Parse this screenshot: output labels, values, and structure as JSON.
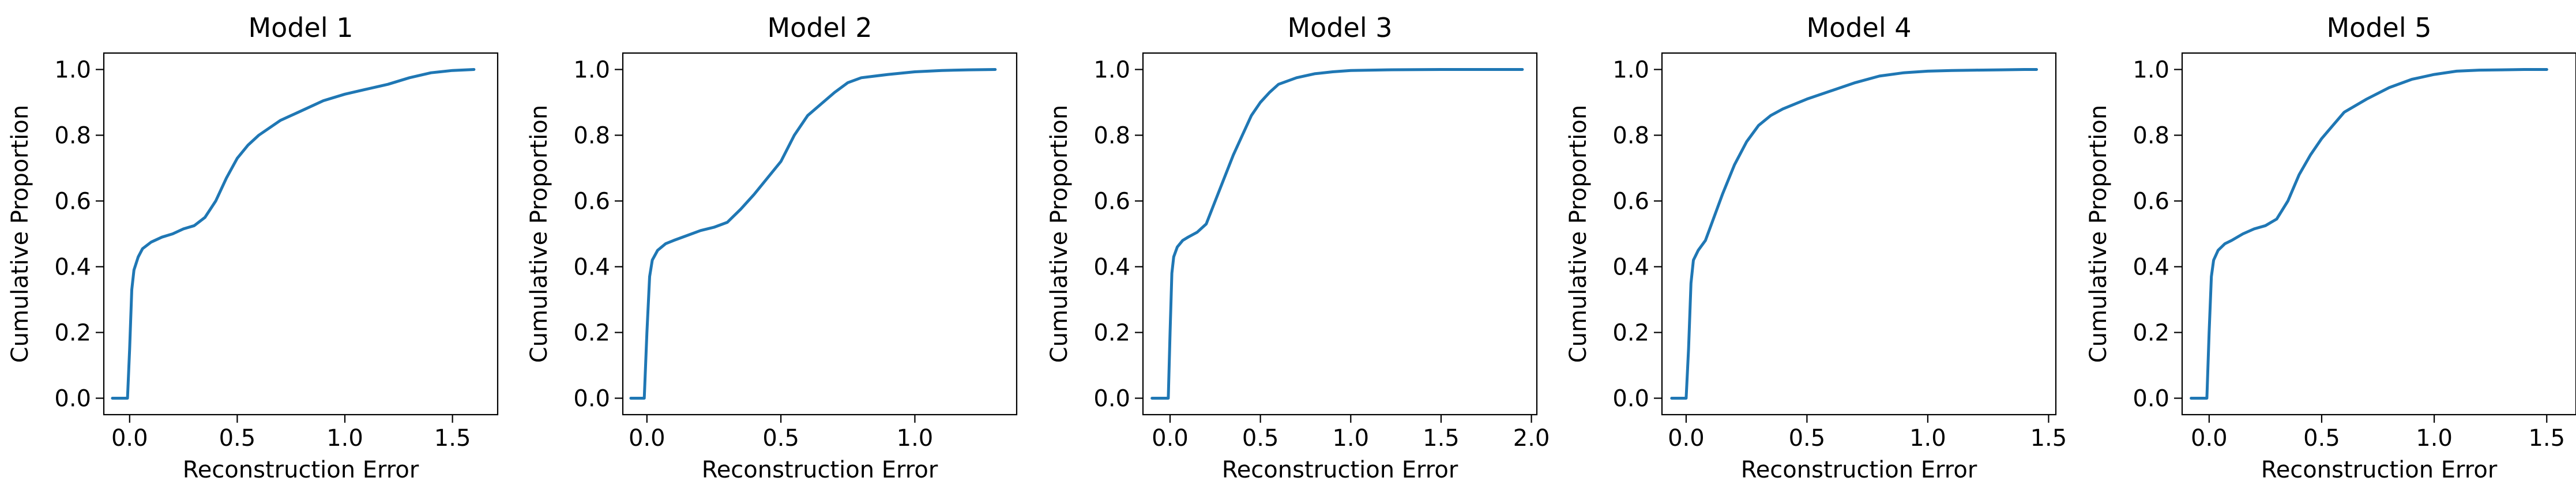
{
  "chart_data": [
    {
      "type": "line",
      "title": "Model 1",
      "xlabel": "Reconstruction Error",
      "ylabel": "Cumulative Proportion",
      "xlim": [
        -0.12,
        1.71
      ],
      "ylim": [
        -0.05,
        1.05
      ],
      "xticks": [
        0.0,
        0.5,
        1.0,
        1.5
      ],
      "xtick_labels": [
        "0.0",
        "0.5",
        "1.0",
        "1.5"
      ],
      "yticks": [
        0.0,
        0.2,
        0.4,
        0.6,
        0.8,
        1.0
      ],
      "ytick_labels": [
        "0.0",
        "0.2",
        "0.4",
        "0.6",
        "0.8",
        "1.0"
      ],
      "grid": false,
      "color": "#1f77b4",
      "series": [
        {
          "x": [
            -0.08,
            -0.01,
            0.0,
            0.01,
            0.02,
            0.04,
            0.06,
            0.1,
            0.15,
            0.2,
            0.25,
            0.3,
            0.35,
            0.4,
            0.45,
            0.5,
            0.55,
            0.6,
            0.7,
            0.8,
            0.9,
            1.0,
            1.1,
            1.2,
            1.3,
            1.4,
            1.5,
            1.6
          ],
          "y": [
            0.0,
            0.0,
            0.15,
            0.33,
            0.39,
            0.43,
            0.455,
            0.475,
            0.49,
            0.5,
            0.515,
            0.525,
            0.55,
            0.6,
            0.67,
            0.73,
            0.77,
            0.8,
            0.845,
            0.875,
            0.905,
            0.925,
            0.94,
            0.955,
            0.975,
            0.99,
            0.997,
            1.0
          ]
        }
      ]
    },
    {
      "type": "line",
      "title": "Model 2",
      "xlabel": "Reconstruction Error",
      "ylabel": "Cumulative Proportion",
      "xlim": [
        -0.09,
        1.38
      ],
      "ylim": [
        -0.05,
        1.05
      ],
      "xticks": [
        0.0,
        0.5,
        1.0
      ],
      "xtick_labels": [
        "0.0",
        "0.5",
        "1.0"
      ],
      "yticks": [
        0.0,
        0.2,
        0.4,
        0.6,
        0.8,
        1.0
      ],
      "ytick_labels": [
        "0.0",
        "0.2",
        "0.4",
        "0.6",
        "0.8",
        "1.0"
      ],
      "grid": false,
      "color": "#1f77b4",
      "series": [
        {
          "x": [
            -0.06,
            -0.01,
            0.0,
            0.01,
            0.02,
            0.04,
            0.07,
            0.1,
            0.15,
            0.2,
            0.25,
            0.3,
            0.35,
            0.4,
            0.45,
            0.5,
            0.55,
            0.6,
            0.65,
            0.7,
            0.75,
            0.8,
            0.9,
            1.0,
            1.1,
            1.2,
            1.3
          ],
          "y": [
            0.0,
            0.0,
            0.2,
            0.37,
            0.42,
            0.45,
            0.47,
            0.48,
            0.495,
            0.51,
            0.52,
            0.535,
            0.575,
            0.62,
            0.67,
            0.72,
            0.8,
            0.86,
            0.895,
            0.93,
            0.96,
            0.975,
            0.985,
            0.993,
            0.997,
            0.999,
            1.0
          ]
        }
      ]
    },
    {
      "type": "line",
      "title": "Model 3",
      "xlabel": "Reconstruction Error",
      "ylabel": "Cumulative Proportion",
      "xlim": [
        -0.15,
        2.03
      ],
      "ylim": [
        -0.05,
        1.05
      ],
      "xticks": [
        0.0,
        0.5,
        1.0,
        1.5,
        2.0
      ],
      "xtick_labels": [
        "0.0",
        "0.5",
        "1.0",
        "1.5",
        "2.0"
      ],
      "yticks": [
        0.0,
        0.2,
        0.4,
        0.6,
        0.8,
        1.0
      ],
      "ytick_labels": [
        "0.0",
        "0.2",
        "0.4",
        "0.6",
        "0.8",
        "1.0"
      ],
      "grid": false,
      "color": "#1f77b4",
      "series": [
        {
          "x": [
            -0.1,
            -0.01,
            0.0,
            0.01,
            0.02,
            0.04,
            0.07,
            0.1,
            0.15,
            0.2,
            0.25,
            0.3,
            0.35,
            0.4,
            0.45,
            0.5,
            0.55,
            0.6,
            0.7,
            0.8,
            0.9,
            1.0,
            1.2,
            1.5,
            1.95
          ],
          "y": [
            0.0,
            0.0,
            0.2,
            0.38,
            0.43,
            0.46,
            0.48,
            0.49,
            0.505,
            0.53,
            0.6,
            0.67,
            0.74,
            0.8,
            0.86,
            0.9,
            0.93,
            0.955,
            0.975,
            0.987,
            0.993,
            0.997,
            0.999,
            1.0,
            1.0
          ]
        }
      ]
    },
    {
      "type": "line",
      "title": "Model 4",
      "xlabel": "Reconstruction Error",
      "ylabel": "Cumulative Proportion",
      "xlim": [
        -0.1,
        1.53
      ],
      "ylim": [
        -0.05,
        1.05
      ],
      "xticks": [
        0.0,
        0.5,
        1.0,
        1.5
      ],
      "xtick_labels": [
        "0.0",
        "0.5",
        "1.0",
        "1.5"
      ],
      "yticks": [
        0.0,
        0.2,
        0.4,
        0.6,
        0.8,
        1.0
      ],
      "ytick_labels": [
        "0.0",
        "0.2",
        "0.4",
        "0.6",
        "0.8",
        "1.0"
      ],
      "grid": false,
      "color": "#1f77b4",
      "series": [
        {
          "x": [
            -0.06,
            0.0,
            0.01,
            0.02,
            0.03,
            0.05,
            0.08,
            0.1,
            0.15,
            0.2,
            0.25,
            0.3,
            0.35,
            0.4,
            0.5,
            0.6,
            0.7,
            0.8,
            0.9,
            1.0,
            1.1,
            1.2,
            1.3,
            1.4,
            1.45
          ],
          "y": [
            0.0,
            0.0,
            0.15,
            0.35,
            0.42,
            0.45,
            0.48,
            0.52,
            0.62,
            0.71,
            0.78,
            0.83,
            0.86,
            0.88,
            0.91,
            0.935,
            0.96,
            0.98,
            0.99,
            0.995,
            0.997,
            0.998,
            0.999,
            1.0,
            1.0
          ]
        }
      ]
    },
    {
      "type": "line",
      "title": "Model 5",
      "xlabel": "Reconstruction Error",
      "ylabel": "Cumulative Proportion",
      "xlim": [
        -0.12,
        1.63
      ],
      "ylim": [
        -0.05,
        1.05
      ],
      "xticks": [
        0.0,
        0.5,
        1.0,
        1.5
      ],
      "xtick_labels": [
        "0.0",
        "0.5",
        "1.0",
        "1.5"
      ],
      "yticks": [
        0.0,
        0.2,
        0.4,
        0.6,
        0.8,
        1.0
      ],
      "ytick_labels": [
        "0.0",
        "0.2",
        "0.4",
        "0.6",
        "0.8",
        "1.0"
      ],
      "grid": false,
      "color": "#1f77b4",
      "series": [
        {
          "x": [
            -0.08,
            -0.01,
            0.0,
            0.01,
            0.02,
            0.04,
            0.07,
            0.1,
            0.15,
            0.2,
            0.25,
            0.3,
            0.35,
            0.4,
            0.45,
            0.5,
            0.55,
            0.6,
            0.7,
            0.8,
            0.9,
            1.0,
            1.1,
            1.2,
            1.3,
            1.4,
            1.5
          ],
          "y": [
            0.0,
            0.0,
            0.2,
            0.37,
            0.42,
            0.45,
            0.47,
            0.48,
            0.5,
            0.515,
            0.525,
            0.545,
            0.6,
            0.68,
            0.74,
            0.79,
            0.83,
            0.87,
            0.91,
            0.945,
            0.97,
            0.985,
            0.995,
            0.998,
            0.999,
            1.0,
            1.0
          ]
        }
      ]
    }
  ]
}
